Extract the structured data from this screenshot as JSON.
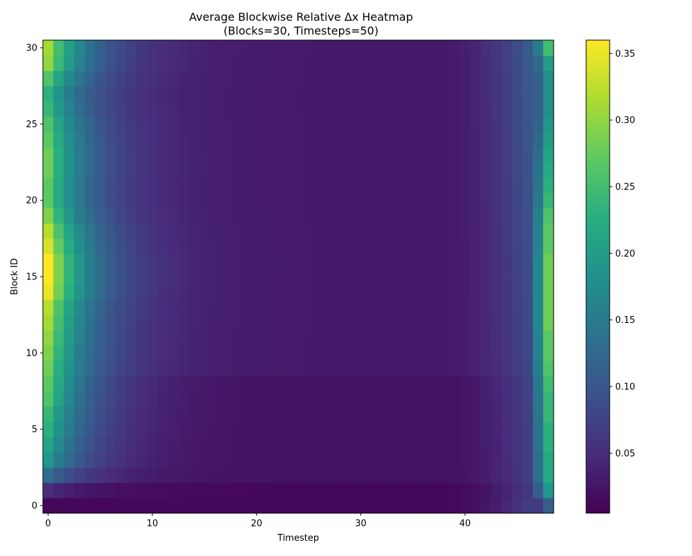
{
  "chart_data": {
    "type": "heatmap",
    "title": "Average Blockwise Relative Δx Heatmap",
    "subtitle": "(Blocks=30, Timesteps=50)",
    "xlabel": "Timestep",
    "ylabel": "Block ID",
    "x_ticks": [
      "0",
      "10",
      "20",
      "30",
      "40"
    ],
    "y_ticks": [
      "0",
      "5",
      "10",
      "15",
      "20",
      "25",
      "30"
    ],
    "colorbar_ticks": [
      "0.05",
      "0.10",
      "0.15",
      "0.20",
      "0.25",
      "0.30",
      "0.35"
    ],
    "colormap": "viridis",
    "vmin": 0.005,
    "vmax": 0.36,
    "x_range": [
      0,
      48
    ],
    "y_range": [
      0,
      30
    ],
    "rows": 31,
    "cols": 49,
    "row_pattern": {
      "block_ids": [
        0,
        1,
        2,
        3,
        4,
        5,
        6,
        7,
        8,
        9,
        10,
        11,
        12,
        13,
        14,
        15,
        16,
        17,
        18,
        19,
        20,
        21,
        22,
        23,
        24,
        25,
        26,
        27,
        28,
        29,
        30
      ],
      "start_value": [
        0.01,
        0.05,
        0.13,
        0.19,
        0.21,
        0.23,
        0.24,
        0.26,
        0.27,
        0.28,
        0.29,
        0.3,
        0.31,
        0.32,
        0.35,
        0.36,
        0.36,
        0.34,
        0.32,
        0.29,
        0.27,
        0.27,
        0.28,
        0.28,
        0.27,
        0.26,
        0.24,
        0.23,
        0.26,
        0.3,
        0.31
      ],
      "end_value": [
        0.11,
        0.19,
        0.22,
        0.22,
        0.23,
        0.23,
        0.24,
        0.24,
        0.25,
        0.26,
        0.27,
        0.27,
        0.28,
        0.28,
        0.28,
        0.28,
        0.28,
        0.27,
        0.27,
        0.26,
        0.24,
        0.23,
        0.22,
        0.21,
        0.2,
        0.19,
        0.18,
        0.18,
        0.18,
        0.2,
        0.25
      ]
    }
  }
}
